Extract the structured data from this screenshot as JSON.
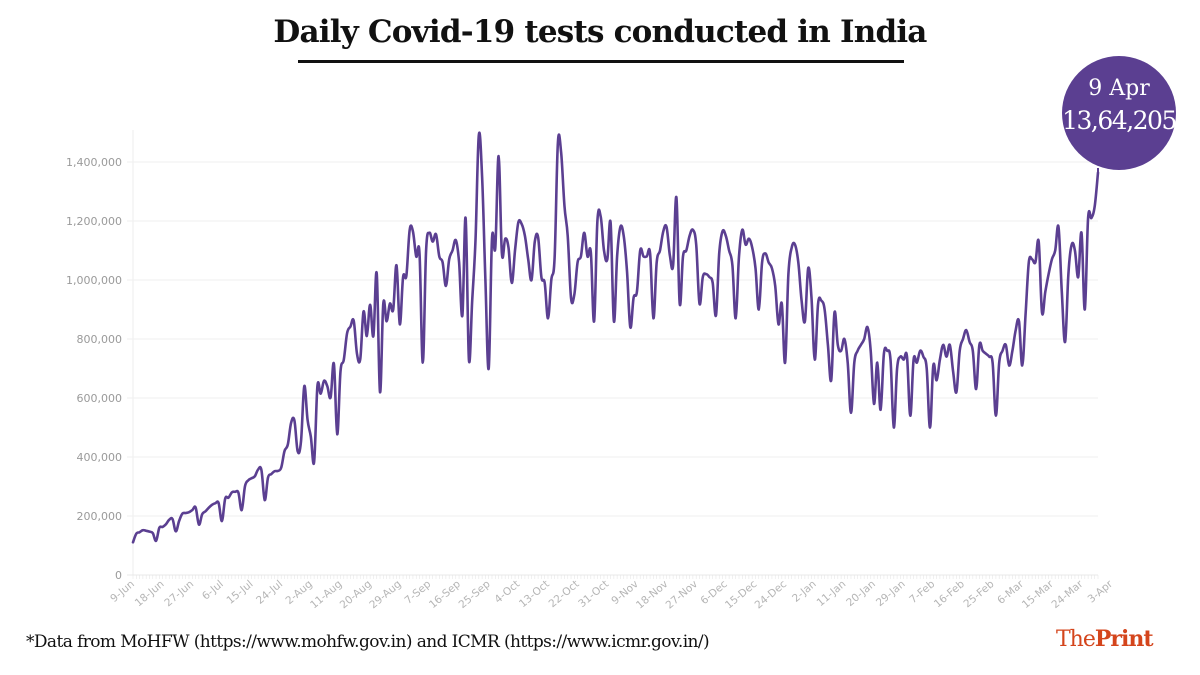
{
  "chart_data": {
    "type": "line",
    "title": "Daily Covid-19 tests conducted in India",
    "xlabel": "",
    "ylabel": "",
    "ylim": [
      0,
      1500000
    ],
    "y_ticks": [
      0,
      200000,
      400000,
      600000,
      800000,
      1000000,
      1200000,
      1400000
    ],
    "y_tick_labels": [
      "0",
      "200,000",
      "400,000",
      "600,000",
      "800,000",
      "1,000,000",
      "1,200,000",
      "1,400,000"
    ],
    "x_tick_labels": [
      "9-Jun",
      "18-Jun",
      "27-Jun",
      "6-Jul",
      "15-Jul",
      "24-Jul",
      "2-Aug",
      "11-Aug",
      "20-Aug",
      "29-Aug",
      "7-Sep",
      "16-Sep",
      "25-Sep",
      "4-Oct",
      "13-Oct",
      "22-Oct",
      "31-Oct",
      "9-Nov",
      "18-Nov",
      "27-Nov",
      "6-Dec",
      "15-Dec",
      "24-Dec",
      "2-Jan",
      "11-Jan",
      "20-Jan",
      "29-Jan",
      "7-Feb",
      "16-Feb",
      "25-Feb",
      "6-Mar",
      "15-Mar",
      "24-Mar",
      "3-Apr"
    ],
    "x_tick_interval_days": 9,
    "grid": true,
    "series": [
      {
        "name": "Daily tests",
        "color": "#5b3f91",
        "start_date": "9-Jun",
        "end_date": "9-Apr",
        "values": [
          111000,
          140000,
          145000,
          152000,
          150000,
          147000,
          142000,
          116000,
          160000,
          163000,
          172000,
          187000,
          190000,
          148000,
          183000,
          208000,
          210000,
          213000,
          220000,
          229000,
          171000,
          206000,
          216000,
          228000,
          238000,
          243000,
          244000,
          183000,
          259000,
          262000,
          280000,
          282000,
          279000,
          220000,
          301000,
          321000,
          328000,
          335000,
          358000,
          356000,
          254000,
          330000,
          342000,
          352000,
          353000,
          364000,
          420000,
          442000,
          516000,
          524000,
          419000,
          453000,
          640000,
          525000,
          469000,
          383000,
          640000,
          615000,
          658000,
          640000,
          602000,
          716000,
          477000,
          690000,
          730000,
          820000,
          842000,
          862000,
          750000,
          733000,
          893000,
          810000,
          916000,
          810000,
          1023000,
          620000,
          920000,
          860000,
          920000,
          900000,
          1050000,
          850000,
          1010000,
          1015000,
          1170000,
          1165000,
          1080000,
          1090000,
          720000,
          1100000,
          1160000,
          1130000,
          1155000,
          1080000,
          1060000,
          980000,
          1070000,
          1100000,
          1135000,
          1060000,
          880000,
          1210000,
          730000,
          930000,
          1135000,
          1490000,
          1350000,
          1000000,
          700000,
          1140000,
          1110000,
          1420000,
          1090000,
          1140000,
          1110000,
          990000,
          1100000,
          1195000,
          1190000,
          1150000,
          1070000,
          1000000,
          1130000,
          1145000,
          1010000,
          990000,
          870000,
          1000000,
          1075000,
          1465000,
          1430000,
          1250000,
          1150000,
          940000,
          950000,
          1060000,
          1080000,
          1160000,
          1080000,
          1095000,
          860000,
          1200000,
          1215000,
          1100000,
          1070000,
          1195000,
          860000,
          1080000,
          1180000,
          1150000,
          1030000,
          840000,
          940000,
          960000,
          1100000,
          1080000,
          1080000,
          1090000,
          870000,
          1060000,
          1100000,
          1165000,
          1180000,
          1085000,
          1050000,
          1280000,
          920000,
          1080000,
          1100000,
          1150000,
          1170000,
          1120000,
          920000,
          1010000,
          1020000,
          1010000,
          990000,
          880000,
          1090000,
          1165000,
          1150000,
          1100000,
          1050000,
          870000,
          1080000,
          1170000,
          1120000,
          1140000,
          1110000,
          1040000,
          900000,
          1060000,
          1090000,
          1060000,
          1040000,
          980000,
          850000,
          920000,
          720000,
          1020000,
          1110000,
          1120000,
          1060000,
          930000,
          860000,
          1040000,
          940000,
          730000,
          920000,
          930000,
          900000,
          780000,
          660000,
          890000,
          780000,
          760000,
          800000,
          720000,
          550000,
          720000,
          760000,
          780000,
          800000,
          840000,
          760000,
          580000,
          720000,
          560000,
          750000,
          760000,
          730000,
          500000,
          700000,
          740000,
          730000,
          740000,
          540000,
          730000,
          720000,
          760000,
          740000,
          700000,
          500000,
          710000,
          660000,
          730000,
          780000,
          740000,
          780000,
          690000,
          620000,
          760000,
          800000,
          830000,
          790000,
          760000,
          630000,
          780000,
          760000,
          750000,
          740000,
          720000,
          540000,
          720000,
          760000,
          780000,
          710000,
          760000,
          830000,
          860000,
          710000,
          880000,
          1060000,
          1070000,
          1060000,
          1130000,
          890000,
          960000,
          1020000,
          1070000,
          1100000,
          1180000,
          960000,
          790000,
          1020000,
          1120000,
          1100000,
          1010000,
          1160000,
          900000,
          1210000,
          1210000,
          1250000,
          1364205
        ]
      }
    ],
    "annotation": {
      "date": "9 Apr",
      "value": "13,64,205"
    }
  },
  "footnote": "*Data from MoHFW (https://www.mohfw.gov.in) and ICMR (https://www.icmr.gov.in/)",
  "logo": {
    "part1": "The",
    "part2": "Print",
    "color": "#d4451c"
  }
}
